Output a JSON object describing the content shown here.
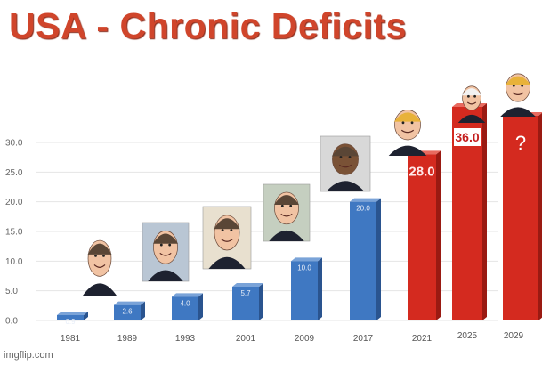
{
  "title": "USA - Chronic Deficits",
  "watermark": "imgflip.com",
  "colors": {
    "blue": "#3f78c2",
    "red": "#d42a1f",
    "title": "#d0452b",
    "grid": "#e4e4e4"
  },
  "chart_data": {
    "type": "bar",
    "title": "USA - Chronic Deficits",
    "xlabel": "",
    "ylabel": "",
    "ylim": [
      0,
      30
    ],
    "yticks": [
      "0.0",
      "5.0",
      "10.0",
      "15.0",
      "20.0",
      "25.0",
      "30.0"
    ],
    "grid": true,
    "categories": [
      "1981",
      "1989",
      "1993",
      "2001",
      "2009",
      "2017",
      "2021",
      "2025",
      "2029"
    ],
    "values": [
      0.9,
      2.6,
      4.0,
      5.7,
      10.0,
      20.0,
      28.0,
      36.0,
      null
    ],
    "value_labels": [
      "0.9",
      "2.6",
      "4.0",
      "5.7",
      "10.0",
      "20.0",
      "28.0",
      "36.0",
      "?"
    ],
    "bar_colors": [
      "blue",
      "blue",
      "blue",
      "blue",
      "blue",
      "blue",
      "red",
      "red",
      "red"
    ],
    "portrait_icons": [
      "caricature-1981-icon",
      "caricature-1989-icon",
      "caricature-1993-icon",
      "caricature-2001-icon",
      "caricature-2009-icon",
      "caricature-2017-icon",
      "caricature-2021-icon",
      "caricature-2025-icon",
      "caricature-2029-icon"
    ]
  }
}
